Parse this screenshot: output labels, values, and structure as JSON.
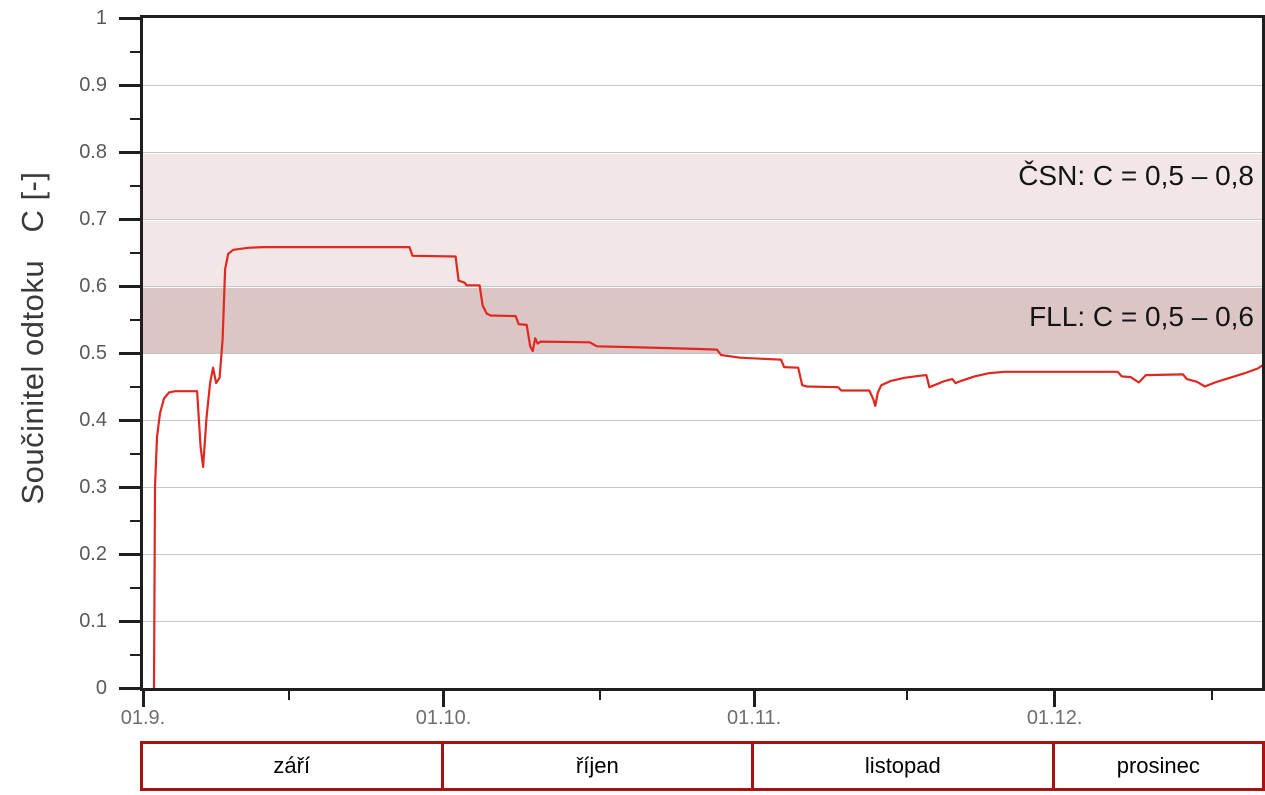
{
  "page": {
    "background": "#ffffff"
  },
  "chart_data": {
    "type": "line",
    "title": "",
    "y_axis": {
      "label": "Součinitel odtoku   C [-]",
      "min": 0,
      "max": 1,
      "major_step": 0.1,
      "minor_step": 0.05,
      "tick_labels": [
        "1",
        "0.9",
        "0.8",
        "0.7",
        "0.6",
        "0.5",
        "0.4",
        "0.3",
        "0.2",
        "0.1",
        "0"
      ],
      "grid": true
    },
    "x_axis": {
      "min_day": 0,
      "max_day": 111.7,
      "major_ticks": [
        {
          "day": 0,
          "label": "01.9."
        },
        {
          "day": 30,
          "label": "01.10."
        },
        {
          "day": 61,
          "label": "01.11."
        },
        {
          "day": 91,
          "label": "01.12."
        }
      ],
      "minor_tick_days": [
        14.6,
        45.6,
        76.3,
        106.7
      ],
      "grid": false
    },
    "bands": [
      {
        "name": "CSN",
        "label": "ČSN: C = 0,5 – 0,8",
        "c_min": 0.5,
        "c_max": 0.8,
        "color": "#f3e6e6"
      },
      {
        "name": "FLL",
        "label": "FLL: C = 0,5 – 0,6",
        "c_min": 0.5,
        "c_max": 0.6,
        "color": "#dcc5c5"
      }
    ],
    "series": [
      {
        "name": "C",
        "color": "#e02820",
        "points": [
          [
            1.1,
            0.0
          ],
          [
            1.2,
            0.3
          ],
          [
            1.4,
            0.375
          ],
          [
            1.7,
            0.41
          ],
          [
            2.1,
            0.432
          ],
          [
            2.6,
            0.441
          ],
          [
            3.2,
            0.443
          ],
          [
            5.4,
            0.443
          ],
          [
            5.75,
            0.36
          ],
          [
            6.0,
            0.33
          ],
          [
            6.35,
            0.405
          ],
          [
            6.7,
            0.455
          ],
          [
            7.0,
            0.478
          ],
          [
            7.3,
            0.455
          ],
          [
            7.65,
            0.463
          ],
          [
            7.95,
            0.52
          ],
          [
            8.2,
            0.625
          ],
          [
            8.5,
            0.648
          ],
          [
            9.0,
            0.654
          ],
          [
            10.5,
            0.657
          ],
          [
            12.0,
            0.658
          ],
          [
            26.6,
            0.658
          ],
          [
            26.9,
            0.645
          ],
          [
            31.2,
            0.644
          ],
          [
            31.5,
            0.608
          ],
          [
            32.1,
            0.605
          ],
          [
            32.3,
            0.601
          ],
          [
            33.6,
            0.601
          ],
          [
            33.9,
            0.571
          ],
          [
            34.3,
            0.559
          ],
          [
            34.7,
            0.556
          ],
          [
            37.2,
            0.555
          ],
          [
            37.5,
            0.543
          ],
          [
            38.3,
            0.542
          ],
          [
            38.65,
            0.51
          ],
          [
            38.9,
            0.503
          ],
          [
            39.15,
            0.522
          ],
          [
            39.4,
            0.514
          ],
          [
            39.7,
            0.517
          ],
          [
            44.6,
            0.516
          ],
          [
            45.3,
            0.51
          ],
          [
            50.6,
            0.508
          ],
          [
            55.6,
            0.506
          ],
          [
            57.3,
            0.505
          ],
          [
            57.7,
            0.497
          ],
          [
            59.6,
            0.493
          ],
          [
            63.7,
            0.49
          ],
          [
            64.0,
            0.479
          ],
          [
            65.4,
            0.478
          ],
          [
            65.8,
            0.452
          ],
          [
            66.3,
            0.45
          ],
          [
            69.4,
            0.449
          ],
          [
            69.7,
            0.444
          ],
          [
            72.5,
            0.444
          ],
          [
            72.9,
            0.431
          ],
          [
            73.1,
            0.421
          ],
          [
            73.35,
            0.441
          ],
          [
            73.7,
            0.452
          ],
          [
            74.6,
            0.458
          ],
          [
            76.0,
            0.463
          ],
          [
            77.5,
            0.466
          ],
          [
            78.2,
            0.467
          ],
          [
            78.5,
            0.449
          ],
          [
            79.0,
            0.452
          ],
          [
            80.0,
            0.458
          ],
          [
            80.8,
            0.461
          ],
          [
            81.1,
            0.455
          ],
          [
            81.6,
            0.458
          ],
          [
            83.0,
            0.465
          ],
          [
            84.5,
            0.47
          ],
          [
            86.0,
            0.472
          ],
          [
            97.3,
            0.472
          ],
          [
            97.7,
            0.465
          ],
          [
            98.6,
            0.464
          ],
          [
            99.4,
            0.456
          ],
          [
            100.1,
            0.467
          ],
          [
            103.8,
            0.468
          ],
          [
            104.2,
            0.461
          ],
          [
            105.2,
            0.457
          ],
          [
            106.0,
            0.45
          ],
          [
            107.0,
            0.456
          ],
          [
            108.5,
            0.463
          ],
          [
            110.0,
            0.47
          ],
          [
            111.3,
            0.477
          ],
          [
            111.7,
            0.481
          ]
        ]
      }
    ],
    "months": [
      {
        "label": "září",
        "from_day": 0,
        "to_day": 30
      },
      {
        "label": "říjen",
        "from_day": 30,
        "to_day": 61
      },
      {
        "label": "listopad",
        "from_day": 61,
        "to_day": 91
      },
      {
        "label": "prosinec",
        "from_day": 91,
        "to_day": 111.7
      }
    ],
    "layout_hints": {
      "legend": "none",
      "annotations_inside_plot": true
    }
  },
  "colors": {
    "axis": "#1f1f1f",
    "grid": "#c6c6c6",
    "line": "#e02820",
    "band_light": "#f3e6e6",
    "band_dark": "#dcc5c5",
    "month_border": "#a81212",
    "y_tick_text": "#595959",
    "x_tick_text": "#6e6e6e"
  }
}
